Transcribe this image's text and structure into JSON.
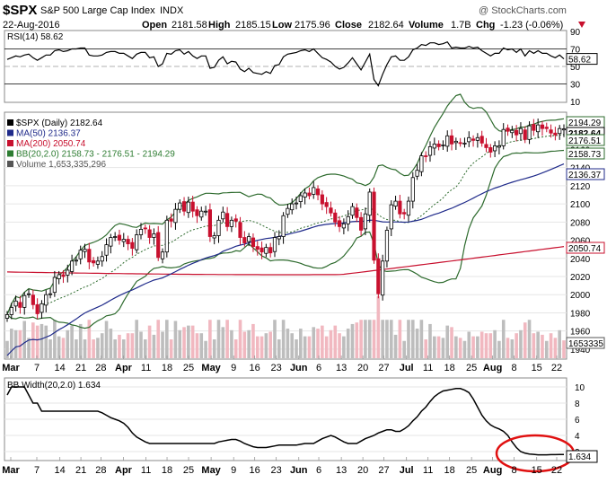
{
  "header": {
    "symbol": "$SPX",
    "name": "S&P 500 Large Cap Index",
    "exchange": "INDX",
    "date": "22-Aug-2016",
    "watermark": "@ StockCharts.com",
    "open_label": "Open",
    "open": "2181.58",
    "high_label": "High",
    "high": "2185.15",
    "low_label": "Low",
    "low": "2175.96",
    "close_label": "Close",
    "close": "2182.64",
    "volume_label": "Volume",
    "volume": "1.7B",
    "chg_label": "Chg",
    "chg": "-1.23 (-0.06%)",
    "chg_icon": "down-triangle-icon"
  },
  "rsi_panel": {
    "legend": "RSI(14) 58.62",
    "ticks": [
      "90",
      "70",
      "50",
      "30",
      "10"
    ],
    "last_value": "58.62"
  },
  "price_panel": {
    "legend": [
      {
        "text": "$SPX (Daily) 2182.64",
        "color": "#000000",
        "icon": "candlestick-icon"
      },
      {
        "text": "MA(50) 2136.37",
        "color": "#1f2a8a"
      },
      {
        "text": "MA(200) 2050.74",
        "color": "#c8102e"
      },
      {
        "text": "BB(20,2.0) 2158.73 - 2176.51 - 2194.29",
        "color": "#2e7d32"
      },
      {
        "text": "Volume 1,653,335,296",
        "color": "#555555",
        "icon": "volume-bars-icon"
      }
    ],
    "ticks": [
      "2140",
      "2120",
      "2100",
      "2080",
      "2060",
      "2040",
      "2020",
      "2000",
      "1980",
      "1960",
      "1940"
    ],
    "tags": [
      "2194.29",
      "2182.64",
      "2176.51",
      "2158.73",
      "2136.37",
      "2050.74",
      "1653335"
    ],
    "upper_ticks_partial": [
      "2180",
      "2160"
    ]
  },
  "bbw_panel": {
    "legend": "BB Width(20,2.0) 1.634",
    "ticks": [
      "10",
      "8",
      "6",
      "4",
      "2"
    ],
    "last_value": "1.634"
  },
  "x_axis": {
    "labels": [
      "Mar",
      "7",
      "14",
      "21",
      "28",
      "Apr",
      "11",
      "18",
      "25",
      "May",
      "9",
      "16",
      "23",
      "Jun",
      "6",
      "13",
      "20",
      "27",
      "Jul",
      "11",
      "18",
      "25",
      "Aug",
      "8",
      "15",
      "22"
    ]
  },
  "chart_data": {
    "type": "candlestick",
    "title": "$SPX S&P 500 Large Cap Index INDX",
    "annotation": "red ellipse highlighting BB Width low near Aug 8-22",
    "price_range": [
      1930,
      2200
    ],
    "closes": [
      1978,
      1986,
      1993,
      1986,
      1999,
      2001,
      1989,
      1979,
      1990,
      2000,
      2001,
      2019,
      2022,
      2020,
      2027,
      2037,
      2038,
      2049,
      2050,
      2036,
      2035,
      2037,
      2042,
      2055,
      2063,
      2064,
      2060,
      2061,
      2056,
      2051,
      2066,
      2072,
      2073,
      2063,
      2067,
      2041,
      2047,
      2082,
      2081,
      2094,
      2101,
      2092,
      2102,
      2092,
      2087,
      2092,
      2092,
      2064,
      2065,
      2082,
      2091,
      2075,
      2082,
      2081,
      2063,
      2057,
      2064,
      2053,
      2050,
      2047,
      2052,
      2046,
      2063,
      2064,
      2087,
      2095,
      2100,
      2101,
      2109,
      2112,
      2109,
      2118,
      2110,
      2100,
      2097,
      2090,
      2080,
      2075,
      2078,
      2086,
      2097,
      2085,
      2071,
      2089,
      2113,
      2038,
      2001,
      2037,
      2071,
      2099,
      2103,
      2089,
      2089,
      2103,
      2129,
      2137,
      2153,
      2152,
      2163,
      2166,
      2163,
      2165,
      2175,
      2166,
      2169,
      2167,
      2167,
      2173,
      2170,
      2173,
      2167,
      2162,
      2157,
      2164,
      2164,
      2182,
      2180,
      2181,
      2176,
      2183,
      2171,
      2186,
      2181,
      2187,
      2183,
      2183,
      2178,
      2176,
      2183,
      2182.64
    ],
    "ma50_last": 2136.37,
    "ma200_last": 2050.74,
    "bb_upper_last": 2194.29,
    "bb_mid_last": 2176.51,
    "bb_lower_last": 2158.73,
    "rsi": [
      58,
      60,
      62,
      61,
      63,
      64,
      60,
      57,
      60,
      63,
      63,
      68,
      69,
      67,
      68,
      70,
      70,
      71,
      71,
      63,
      62,
      62,
      63,
      66,
      67,
      67,
      65,
      65,
      62,
      59,
      64,
      66,
      66,
      60,
      61,
      50,
      53,
      65,
      64,
      68,
      69,
      64,
      67,
      62,
      59,
      62,
      62,
      48,
      49,
      57,
      61,
      53,
      56,
      55,
      47,
      44,
      48,
      43,
      42,
      41,
      44,
      42,
      51,
      52,
      61,
      64,
      65,
      66,
      68,
      69,
      67,
      70,
      65,
      60,
      58,
      55,
      50,
      47,
      49,
      54,
      60,
      53,
      46,
      55,
      64,
      35,
      28,
      41,
      52,
      61,
      62,
      57,
      57,
      61,
      69,
      71,
      75,
      74,
      77,
      77,
      75,
      76,
      78,
      71,
      72,
      71,
      71,
      73,
      71,
      72,
      68,
      65,
      62,
      65,
      65,
      71,
      69,
      70,
      66,
      70,
      62,
      68,
      65,
      68,
      65,
      65,
      62,
      60,
      63,
      58.62
    ],
    "bb_width": [
      9,
      10,
      10,
      10,
      10,
      9,
      8,
      8,
      7,
      7,
      7,
      7,
      7,
      7,
      7,
      7,
      7,
      7,
      7,
      7,
      7,
      7,
      6.8,
      6.5,
      6.2,
      6,
      5.8,
      5.5,
      5,
      4.3,
      3.8,
      3.5,
      3.2,
      3,
      3,
      3,
      3,
      3,
      3,
      3,
      3,
      3,
      3,
      3,
      3,
      3,
      3,
      3,
      3,
      3.2,
      3.3,
      3.4,
      3.5,
      3.5,
      3.3,
      3,
      2.8,
      2.6,
      2.5,
      2.5,
      2.5,
      2.6,
      2.7,
      2.8,
      2.8,
      2.8,
      2.8,
      2.8,
      2.9,
      3,
      3,
      3,
      3.3,
      3.6,
      3.8,
      4,
      3.8,
      3.5,
      3.2,
      3,
      3,
      3,
      3.3,
      3.6,
      3.8,
      4,
      4.3,
      4.5,
      4.7,
      4.7,
      4.5,
      4.5,
      4.8,
      5.2,
      5.8,
      6.3,
      7,
      7.5,
      8.2,
      8.8,
      9.2,
      9.5,
      9.6,
      9.7,
      9.8,
      9.8,
      9.6,
      9.3,
      8.5,
      7.5,
      6.5,
      5.8,
      5.3,
      5,
      4.8,
      4.5,
      4,
      3.2,
      2.5,
      2,
      1.8,
      1.7,
      1.65,
      1.6,
      1.6,
      1.6,
      1.62,
      1.62,
      1.63,
      1.634
    ],
    "volume_range": [
      0,
      3000000000
    ],
    "rsi_range": [
      10,
      90
    ],
    "bbw_range": [
      1,
      11
    ]
  }
}
